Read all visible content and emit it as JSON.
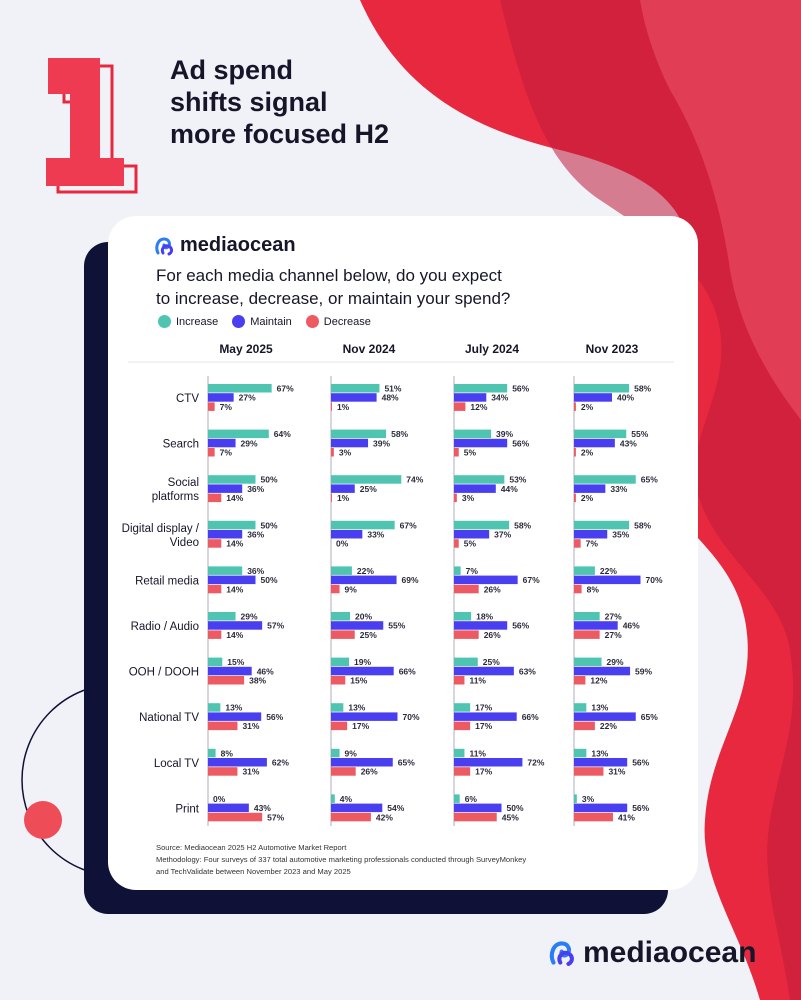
{
  "headline": {
    "number": "1",
    "lines": [
      "Ad spend",
      "shifts signal",
      "more focused H2"
    ]
  },
  "brand": {
    "name": "mediaocean"
  },
  "question": {
    "lines": [
      "For each media channel below, do you expect",
      "to increase, decrease, or maintain your spend?"
    ]
  },
  "colors": {
    "increase": "#4fc4b0",
    "maintain": "#4a3ff0",
    "decrease": "#ee5a62",
    "background": "#f1f2f8",
    "accent": "#e7283f",
    "navy": "#0f1236"
  },
  "legend": [
    {
      "label": "Increase",
      "color": "#4fc4b0"
    },
    {
      "label": "Maintain",
      "color": "#4a3ff0"
    },
    {
      "label": "Decrease",
      "color": "#ee5a62"
    }
  ],
  "footer": {
    "source": "Source: Mediaocean 2025 H2 Automotive Market Report",
    "methodology_1": "Methodology: Four surveys of 337 total automotive marketing professionals conducted through SurveyMonkey",
    "methodology_2": "and TechValidate between November 2023 and May 2025"
  },
  "chart_data": {
    "type": "bar",
    "title": "For each media channel below, do you expect to increase, decrease, or maintain your spend?",
    "unit": "%",
    "categories": [
      [
        "CTV"
      ],
      [
        "Search"
      ],
      [
        "Social",
        "platforms"
      ],
      [
        "Digital display /",
        "Video"
      ],
      [
        "Retail media"
      ],
      [
        "Radio / Audio"
      ],
      [
        "OOH / DOOH"
      ],
      [
        "National TV"
      ],
      [
        "Local TV"
      ],
      [
        "Print"
      ]
    ],
    "series_names": [
      "Increase",
      "Maintain",
      "Decrease"
    ],
    "panels": [
      {
        "period": "May 2025",
        "increase": [
          67,
          64,
          50,
          50,
          36,
          29,
          15,
          13,
          8,
          0
        ],
        "maintain": [
          27,
          29,
          36,
          36,
          50,
          57,
          46,
          56,
          62,
          43
        ],
        "decrease": [
          7,
          7,
          14,
          14,
          14,
          14,
          38,
          31,
          31,
          57
        ]
      },
      {
        "period": "Nov 2024",
        "increase": [
          51,
          58,
          74,
          67,
          22,
          20,
          19,
          13,
          9,
          4
        ],
        "maintain": [
          48,
          39,
          25,
          33,
          69,
          55,
          66,
          70,
          65,
          54
        ],
        "decrease": [
          1,
          3,
          1,
          0,
          9,
          25,
          15,
          17,
          26,
          42
        ]
      },
      {
        "period": "July 2024",
        "increase": [
          56,
          39,
          53,
          58,
          7,
          18,
          25,
          17,
          11,
          6
        ],
        "maintain": [
          34,
          56,
          44,
          37,
          67,
          56,
          63,
          66,
          72,
          50
        ],
        "decrease": [
          12,
          5,
          3,
          5,
          26,
          26,
          11,
          17,
          17,
          45
        ]
      },
      {
        "period": "Nov 2023",
        "increase": [
          58,
          55,
          65,
          58,
          22,
          27,
          29,
          13,
          13,
          3
        ],
        "maintain": [
          40,
          43,
          33,
          35,
          70,
          46,
          59,
          65,
          56,
          56
        ],
        "decrease": [
          2,
          2,
          2,
          7,
          8,
          27,
          12,
          22,
          31,
          41
        ]
      }
    ]
  }
}
